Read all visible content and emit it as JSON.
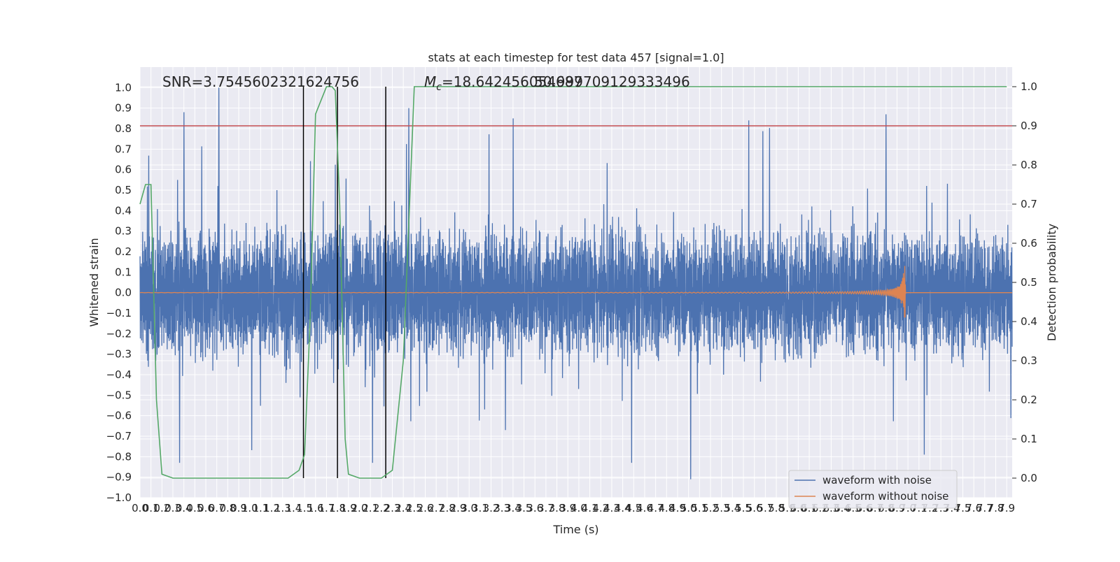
{
  "chart_data": {
    "type": "line",
    "title": "stats at each timestep for test data 457 [signal=1.0]",
    "xlabel": "Time (s)",
    "ylabel": "Whitened strain",
    "y2label": "Detection probability",
    "xlim": [
      0.0,
      7.95
    ],
    "ylim": [
      -1.0,
      1.1
    ],
    "y2lim": [
      -0.05,
      1.05
    ],
    "x_ticks": [
      0.0,
      0.1,
      0.2,
      0.3,
      0.4,
      0.5,
      0.6,
      0.7,
      0.8,
      0.9,
      1.0,
      1.1,
      1.2,
      1.3,
      1.4,
      1.5,
      1.6,
      1.7,
      1.8,
      1.9,
      2.0,
      2.1,
      2.2,
      2.3,
      2.4,
      2.5,
      2.6,
      2.7,
      2.8,
      2.9,
      3.0,
      3.1,
      3.2,
      3.3,
      3.4,
      3.5,
      3.6,
      3.7,
      3.8,
      3.9,
      4.0,
      4.1,
      4.2,
      4.3,
      4.4,
      4.5,
      4.6,
      4.7,
      4.8,
      4.9,
      5.0,
      5.1,
      5.2,
      5.3,
      5.4,
      5.5,
      5.6,
      5.7,
      5.8,
      5.9,
      6.0,
      6.1,
      6.2,
      6.3,
      6.4,
      6.5,
      6.6,
      6.7,
      6.8,
      6.9,
      7.0,
      7.1,
      7.2,
      7.3,
      7.4,
      7.5,
      7.6,
      7.7,
      7.8,
      7.9
    ],
    "y_ticks": [
      -1.0,
      -0.9,
      -0.8,
      -0.7,
      -0.6,
      -0.5,
      -0.4,
      -0.3,
      -0.2,
      -0.1,
      0.0,
      0.1,
      0.2,
      0.3,
      0.4,
      0.5,
      0.6,
      0.7,
      0.8,
      0.9,
      1.0
    ],
    "y2_ticks": [
      0.0,
      0.1,
      0.2,
      0.3,
      0.4,
      0.5,
      0.6,
      0.7,
      0.8,
      0.9,
      1.0
    ],
    "annotations": {
      "snr_text": "SNR=3.7545602321624756",
      "mc_prefix": "M",
      "mc_sub": "c",
      "mc_value": "=18.642456054687",
      "mc_overlap": "50.999709129333496"
    },
    "grid": true,
    "legend_placement": "lower-right",
    "series": [
      {
        "name": "waveform with noise",
        "color": "#4c72b0",
        "kind": "noise",
        "envelope_typical": 0.33,
        "range": [
          -0.91,
          1.0
        ],
        "peaks": [
          [
            0.4,
            0.88
          ],
          [
            0.72,
            1.0
          ],
          [
            2.45,
            0.9
          ],
          [
            3.4,
            0.85
          ],
          [
            5.55,
            0.84
          ],
          [
            6.8,
            0.87
          ]
        ],
        "troughs": [
          [
            0.36,
            -0.83
          ],
          [
            2.12,
            -0.83
          ],
          [
            4.48,
            -0.83
          ],
          [
            5.02,
            -0.91
          ],
          [
            7.15,
            -0.79
          ]
        ]
      },
      {
        "name": "waveform without noise",
        "color": "#dd8452",
        "kind": "chirp",
        "merger_time": 6.98,
        "peak_amplitude": 0.13,
        "trough_amplitude": -0.17
      },
      {
        "name": "",
        "color": "#55a868",
        "axis": "right",
        "x": [
          0.0,
          0.05,
          0.1,
          0.15,
          0.2,
          0.3,
          0.5,
          1.0,
          1.2,
          1.3,
          1.35,
          1.4,
          1.45,
          1.5,
          1.55,
          1.6,
          1.7,
          1.75,
          1.78,
          1.82,
          1.87,
          1.9,
          2.0,
          2.1,
          2.2,
          2.3,
          2.4,
          2.5,
          3.0,
          4.0,
          5.0,
          6.0,
          7.0,
          7.9
        ],
        "y": [
          0.7,
          0.75,
          0.75,
          0.2,
          0.01,
          0.0,
          0.0,
          0.0,
          0.0,
          0.0,
          0.0,
          0.01,
          0.02,
          0.06,
          0.4,
          0.93,
          1.0,
          1.0,
          0.99,
          0.7,
          0.1,
          0.01,
          0.0,
          0.0,
          0.0,
          0.02,
          0.3,
          1.0,
          1.0,
          1.0,
          1.0,
          1.0,
          1.0,
          1.0
        ]
      }
    ],
    "threshold_line": {
      "color": "#c44e52",
      "y2": 0.9
    },
    "vertical_lines": [
      1.49,
      1.8,
      2.24
    ]
  }
}
